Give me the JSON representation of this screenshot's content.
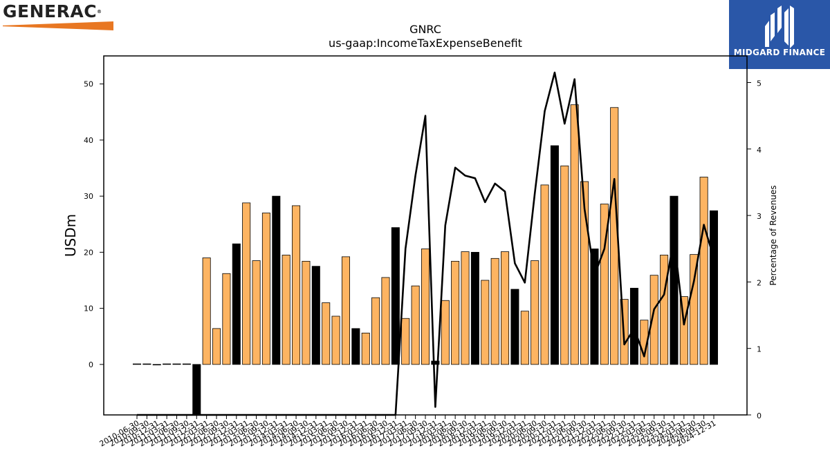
{
  "logos": {
    "left_text": "GENERAC",
    "left_mark": "®",
    "left_accent": "#e87722",
    "right_text": "MIDGARD FINANCE",
    "right_bg": "#2a57a8"
  },
  "chart_data": {
    "type": "bar",
    "title": "GNRC",
    "subtitle": "us-gaap:IncomeTaxExpenseBenefit",
    "ylabel": "USDm",
    "y2label": "Percentage of Revenues",
    "ylim": [
      -9,
      55
    ],
    "y2lim": [
      0,
      5.4
    ],
    "yticks": [
      0,
      10,
      20,
      30,
      40,
      50
    ],
    "y2ticks": [
      0,
      1,
      2,
      3,
      4,
      5
    ],
    "grid": false,
    "colors": {
      "bar": "#fdb462",
      "bar_q4": "#000000",
      "line": "#000000"
    },
    "categories": [
      "2010-06-30",
      "2010-09-30",
      "2010-12-31",
      "2011-03-31",
      "2011-06-30",
      "2011-09-30",
      "2011-12-31",
      "2012-03-31",
      "2012-06-30",
      "2012-09-30",
      "2012-12-31",
      "2013-03-31",
      "2013-06-30",
      "2013-09-30",
      "2013-12-31",
      "2014-03-31",
      "2014-06-30",
      "2014-09-30",
      "2014-12-31",
      "2015-03-31",
      "2015-06-30",
      "2015-09-30",
      "2015-12-31",
      "2016-03-31",
      "2016-06-30",
      "2016-09-30",
      "2016-12-31",
      "2017-03-31",
      "2017-06-30",
      "2017-09-30",
      "2017-12-31",
      "2018-03-31",
      "2018-06-30",
      "2018-09-30",
      "2018-12-31",
      "2019-03-31",
      "2019-06-30",
      "2019-09-30",
      "2019-12-31",
      "2020-03-31",
      "2020-06-30",
      "2020-09-30",
      "2020-12-31",
      "2021-03-31",
      "2021-06-30",
      "2021-09-30",
      "2021-12-31",
      "2022-03-31",
      "2022-06-30",
      "2022-09-30",
      "2022-12-31",
      "2023-03-31",
      "2023-06-30",
      "2023-09-30",
      "2023-12-31",
      "2024-03-31",
      "2024-06-30",
      "2024-09-30",
      "2024-12-31"
    ],
    "x_tick_labels": [
      "2010-06-30",
      "2010-09-30",
      "2010-12-31",
      "2011-03-31",
      "2011-06-30",
      "2011-09-30",
      "2011-12-31",
      "2012-03-31",
      "2012-06-30",
      "2012-09-30",
      "2012-12-31",
      "2013-03-31",
      "2013-06-30",
      "2013-09-30",
      "2013-12-31",
      "2014-03-31",
      "2014-06-30",
      "2014-09-30",
      "2014-12-31",
      "2015-03-31",
      "2015-06-30",
      "2015-09-30",
      "2015-12-31",
      "2016-03-31",
      "2016-06-30",
      "2016-09-30",
      "2016-12-31",
      "2017-03-31",
      "2017-06-30",
      "2017-09-30",
      "2017-12-31",
      "2018-03-31",
      "2018-06-30",
      "2018-09-30",
      "2018-12-31",
      "2019-03-31",
      "2019-06-30",
      "2019-09-30",
      "2019-12-31",
      "2020-03-31",
      "2020-06-30",
      "2020-09-30",
      "2020-12-31",
      "2021-03-31",
      "2021-06-30",
      "2021-09-30",
      "2021-12-31",
      "2022-03-31",
      "2022-06-30",
      "2022-09-30",
      "2022-12-31",
      "2023-03-31",
      "2023-06-30",
      "2023-09-30",
      "2023-12-31",
      "2024-03-31",
      "2024-06-30",
      "2024-09-30",
      "2024-12-31"
    ],
    "series": [
      {
        "type": "bar",
        "axis": "left",
        "values": [
          0.1,
          0.1,
          -0.1,
          0.1,
          0.1,
          0.1,
          -9.0,
          19.0,
          6.4,
          16.2,
          21.5,
          28.8,
          18.5,
          27.0,
          30.0,
          19.5,
          28.3,
          18.4,
          17.5,
          11.0,
          8.6,
          19.2,
          6.4,
          5.6,
          11.9,
          15.5,
          24.4,
          8.2,
          14.0,
          20.6,
          0.6,
          11.4,
          18.4,
          20.1,
          20.0,
          15.0,
          18.9,
          20.1,
          13.4,
          9.5,
          18.5,
          32.0,
          39.0,
          35.4,
          46.3,
          32.6,
          20.6,
          28.6,
          45.8,
          11.6,
          13.6,
          7.9,
          15.9,
          19.5,
          30.0,
          12.1,
          19.6,
          33.4,
          27.4
        ]
      },
      {
        "type": "line",
        "axis": "right",
        "values": [
          0,
          0,
          0,
          0,
          0,
          0,
          0,
          0,
          0,
          0,
          0,
          0,
          0,
          0,
          0,
          0,
          0,
          0,
          0,
          0,
          0,
          0,
          0,
          0,
          0,
          0,
          0,
          2.5,
          3.6,
          4.5,
          0.12,
          2.85,
          3.72,
          3.6,
          3.56,
          3.2,
          3.48,
          3.36,
          2.28,
          1.99,
          3.33,
          4.57,
          5.15,
          4.38,
          5.05,
          3.1,
          2.1,
          2.5,
          3.55,
          1.06,
          1.3,
          0.88,
          1.59,
          1.81,
          2.65,
          1.36,
          2.01,
          2.86,
          2.36
        ]
      }
    ]
  }
}
